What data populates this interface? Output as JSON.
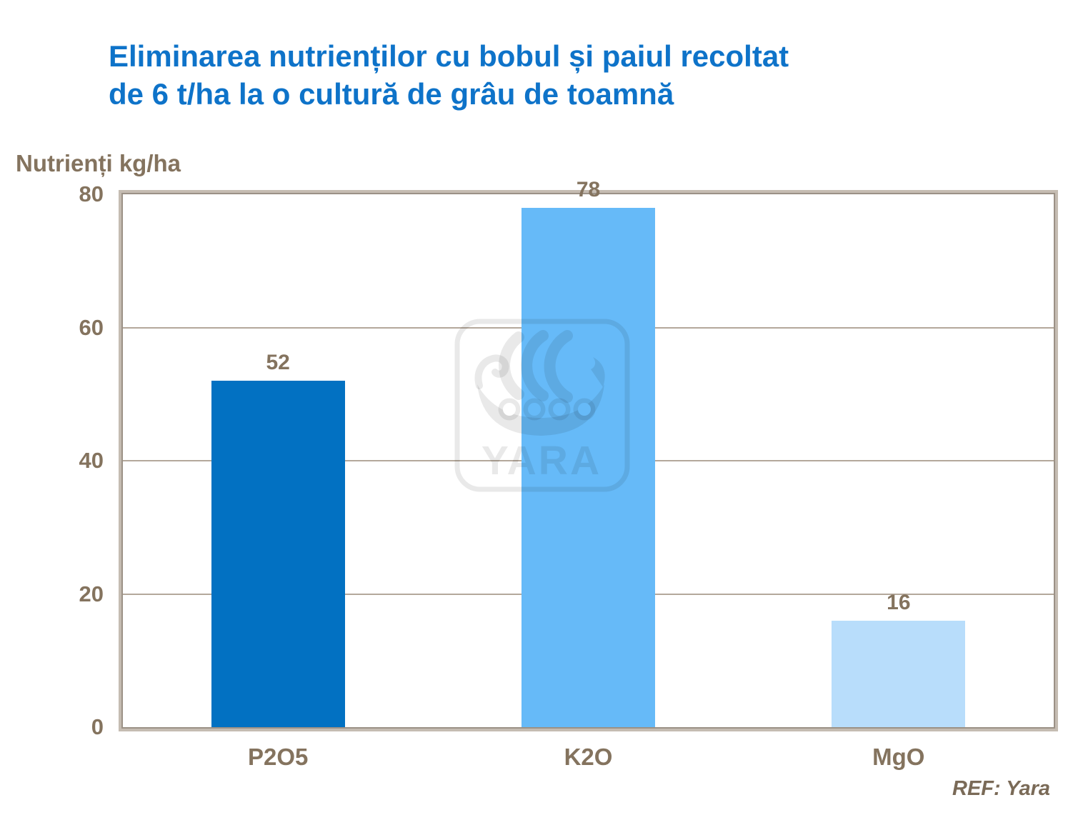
{
  "title": {
    "line1": "Eliminarea nutrienților cu bobul și paiul recoltat",
    "line2": "de 6 t/ha la o cultură de grâu de toamnă"
  },
  "watermark": {
    "text": "YARA"
  },
  "footer": {
    "ref": "REF: Yara"
  },
  "colors": {
    "title_blue": "#0E73C9",
    "text_brown": "#84735E",
    "gridline": "#B4A89B",
    "border_inner": "#9B9186",
    "border_outer": "#C5BCB2",
    "bars": [
      "#0271C2",
      "#66BAF8",
      "#B8DDFB"
    ]
  },
  "chart_data": {
    "type": "bar",
    "title": "Eliminarea nutrienților cu bobul și paiul recoltat de 6 t/ha la o cultură de grâu de toamnă",
    "ylabel": "Nutrienți kg/ha",
    "xlabel": "",
    "categories": [
      "P2O5",
      "K2O",
      "MgO"
    ],
    "values": [
      52,
      78,
      16
    ],
    "data_labels": [
      "52",
      "78",
      "16"
    ],
    "ylim": [
      0,
      80
    ],
    "yticks": [
      0,
      20,
      40,
      60,
      80
    ],
    "grid": true,
    "legend": false,
    "bar_colors": [
      "#0271C2",
      "#66BAF8",
      "#B8DDFB"
    ],
    "annotations": [
      "REF: Yara"
    ]
  }
}
